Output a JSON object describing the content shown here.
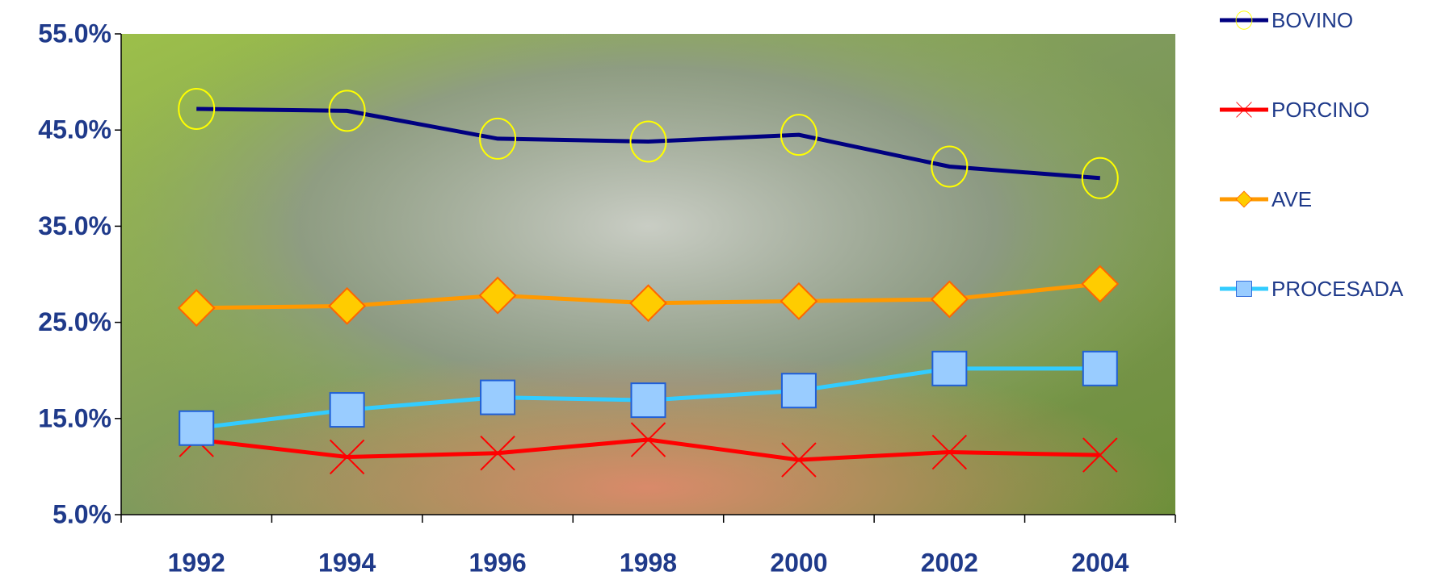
{
  "chart_data": {
    "type": "line",
    "categories": [
      "1992",
      "1994",
      "1996",
      "1998",
      "2000",
      "2002",
      "2004"
    ],
    "series": [
      {
        "name": "BOVINO",
        "color": "#000080",
        "marker": "circle",
        "marker_color": "#ffff00",
        "values": [
          47.2,
          47.0,
          44.1,
          43.8,
          44.5,
          41.2,
          40.0
        ]
      },
      {
        "name": "PORCINO",
        "color": "#ff0000",
        "marker": "x",
        "marker_color": "#ff0000",
        "values": [
          12.8,
          11.0,
          11.4,
          12.8,
          10.7,
          11.5,
          11.2
        ]
      },
      {
        "name": "AVE",
        "color": "#ff9900",
        "marker": "diamond",
        "marker_color": "#ffcc00",
        "values": [
          26.5,
          26.7,
          27.8,
          27.0,
          27.2,
          27.4,
          29.0
        ]
      },
      {
        "name": "PROCESADA",
        "color": "#33ccff",
        "marker": "square",
        "marker_color": "#99ccff",
        "values": [
          14.0,
          15.9,
          17.2,
          16.9,
          17.9,
          20.2,
          20.2
        ]
      }
    ],
    "ylim": [
      5,
      55
    ],
    "yticks": [
      {
        "value": 5,
        "label": "5.0%"
      },
      {
        "value": 15,
        "label": "15.0%"
      },
      {
        "value": 25,
        "label": "25.0%"
      },
      {
        "value": 35,
        "label": "35.0%"
      },
      {
        "value": 45,
        "label": "45.0%"
      },
      {
        "value": 55,
        "label": "55.0%"
      }
    ],
    "legend": "right"
  }
}
